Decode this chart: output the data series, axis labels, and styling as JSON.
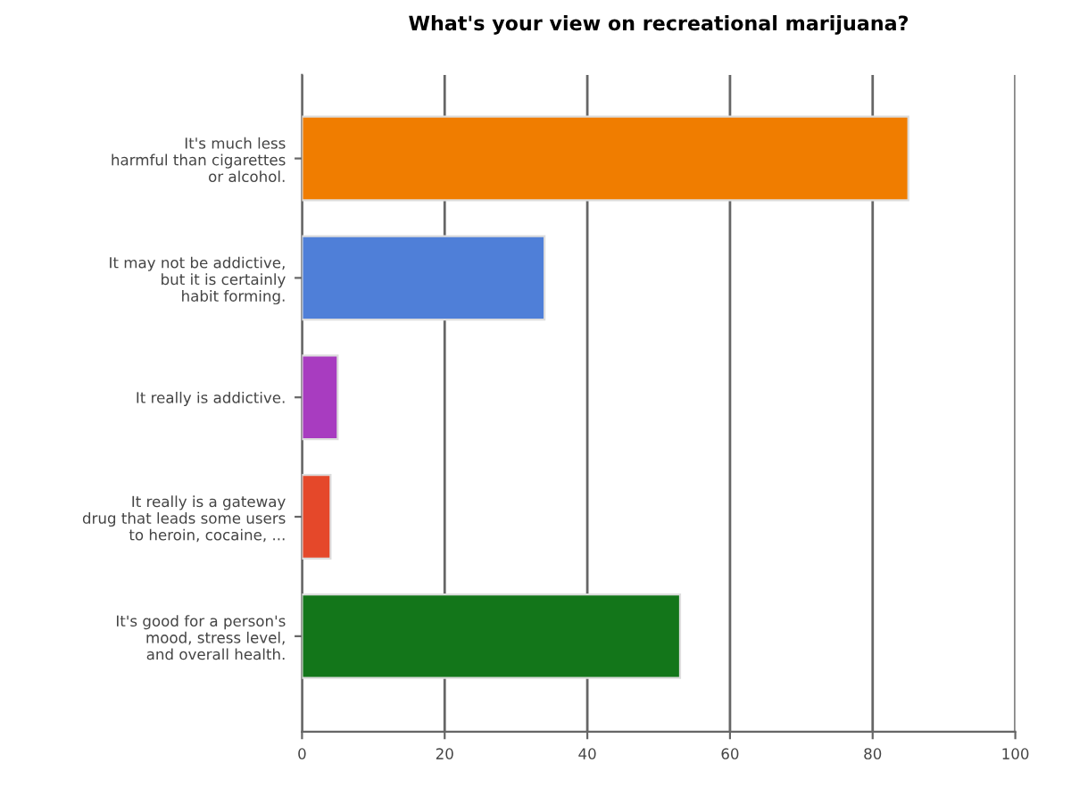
{
  "chart_data": {
    "type": "bar",
    "orientation": "horizontal",
    "title": "What's your view on recreational marijuana?",
    "categories": [
      "It's much less\nharmful than cigarettes\nor alcohol.",
      "It may not be addictive,\nbut it is certainly\nhabit forming.",
      "It really is addictive.",
      "It really is a gateway\ndrug that leads some users\nto heroin, cocaine, ...",
      "It's good for a person's\nmood, stress level,\nand overall health."
    ],
    "values": [
      85,
      34,
      5,
      4,
      53
    ],
    "colors": [
      "#f07d00",
      "#4f7fd8",
      "#a83cc0",
      "#e5482a",
      "#13761a"
    ],
    "xlim": [
      0,
      100
    ],
    "xticks": [
      0,
      20,
      40,
      60,
      80,
      100
    ],
    "grid": "x"
  }
}
